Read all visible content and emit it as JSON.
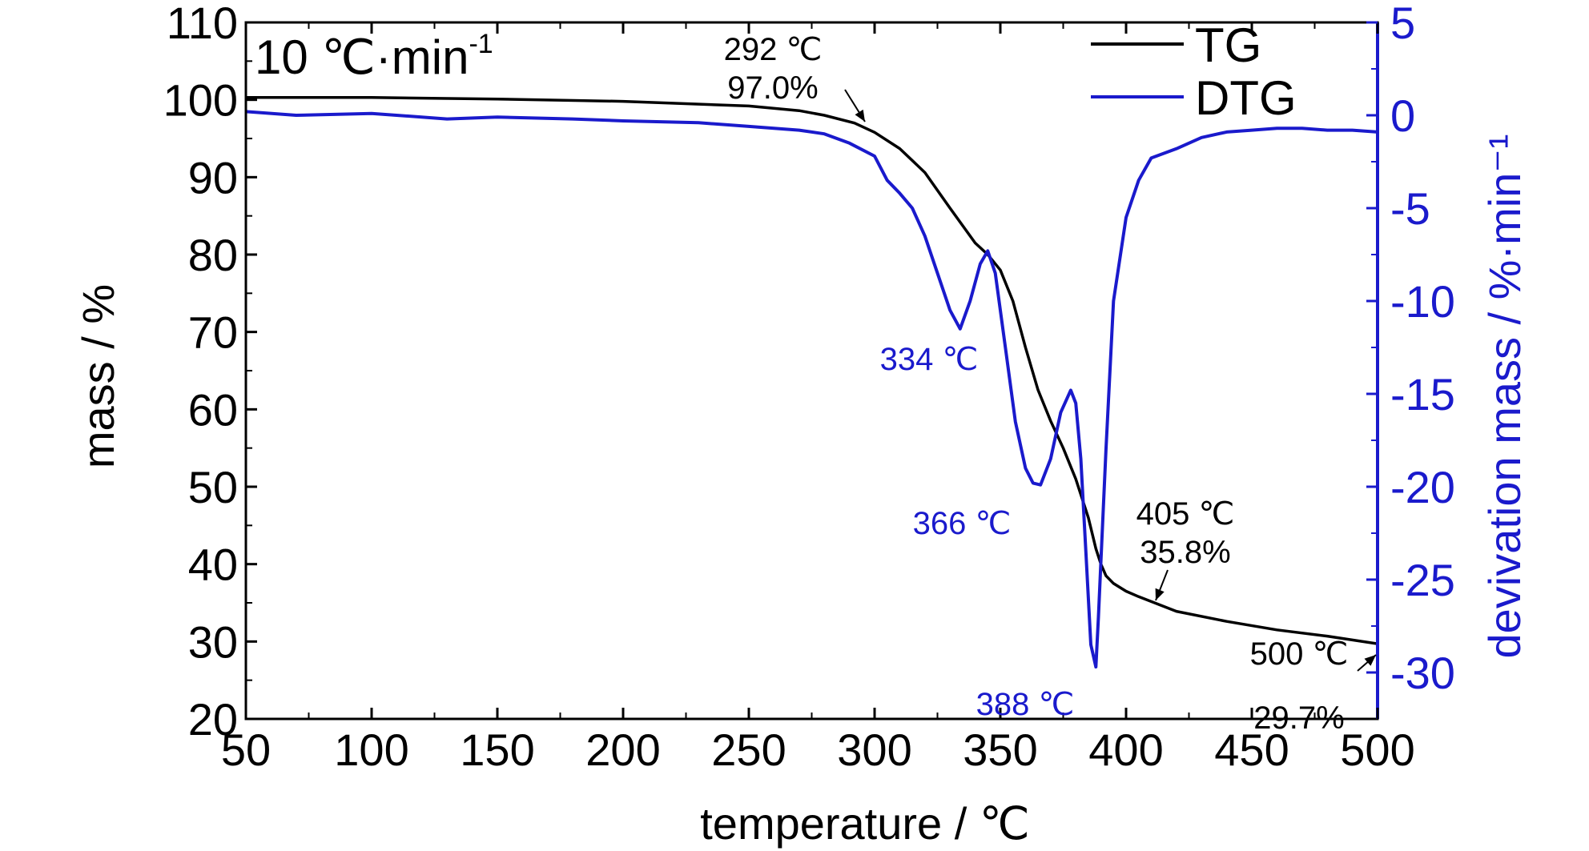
{
  "chart_data": {
    "type": "line",
    "xlabel": "temperature / ℃",
    "ylabel_left": "mass / %",
    "ylabel_right": "devivation mass / %·min⁻¹",
    "condition_label": {
      "main": "10 ℃·min",
      "sup": "-1"
    },
    "xlim": [
      50,
      500
    ],
    "ylim_left": [
      20,
      110
    ],
    "ylim_right": [
      -32.5,
      5
    ],
    "x_ticks": [
      50,
      100,
      150,
      200,
      250,
      300,
      350,
      400,
      450,
      500
    ],
    "y_ticks_left": [
      20,
      30,
      40,
      50,
      60,
      70,
      80,
      90,
      100,
      110
    ],
    "y_ticks_right": [
      5,
      0,
      -5,
      -10,
      -15,
      -20,
      -25,
      -30
    ],
    "legend_position": "top-right",
    "colors": {
      "TG": "#000000",
      "DTG": "#1a1acc"
    },
    "series": [
      {
        "name": "TG",
        "axis": "left",
        "x": [
          50,
          100,
          150,
          200,
          250,
          270,
          280,
          292,
          300,
          310,
          320,
          330,
          340,
          345,
          350,
          355,
          360,
          365,
          370,
          375,
          380,
          385,
          388,
          390,
          392,
          395,
          400,
          405,
          420,
          440,
          460,
          480,
          500
        ],
        "y": [
          100.3,
          100.3,
          100.1,
          99.8,
          99.2,
          98.6,
          98.0,
          97.0,
          95.8,
          93.7,
          90.6,
          86.0,
          81.5,
          80.0,
          78.0,
          74.0,
          68.0,
          62.5,
          58.5,
          55.0,
          51.0,
          46.0,
          42.0,
          40.0,
          38.5,
          37.5,
          36.5,
          35.8,
          33.9,
          32.6,
          31.5,
          30.7,
          29.7
        ]
      },
      {
        "name": "DTG",
        "axis": "right",
        "x": [
          50,
          70,
          100,
          130,
          150,
          180,
          200,
          230,
          250,
          260,
          270,
          280,
          290,
          300,
          305,
          310,
          315,
          320,
          325,
          330,
          334,
          338,
          342,
          345,
          348,
          352,
          356,
          360,
          363,
          366,
          370,
          374,
          378,
          380,
          382,
          384,
          386,
          388,
          389,
          390,
          392,
          395,
          400,
          405,
          410,
          420,
          430,
          440,
          450,
          460,
          470,
          480,
          490,
          500
        ],
        "y": [
          0.2,
          0.0,
          0.1,
          -0.2,
          -0.1,
          -0.2,
          -0.3,
          -0.4,
          -0.6,
          -0.7,
          -0.8,
          -1.0,
          -1.5,
          -2.2,
          -3.5,
          -4.2,
          -5.0,
          -6.5,
          -8.5,
          -10.5,
          -11.5,
          -10.0,
          -8.0,
          -7.3,
          -8.5,
          -12.5,
          -16.5,
          -19.0,
          -19.8,
          -19.9,
          -18.5,
          -16.0,
          -14.8,
          -15.5,
          -18.5,
          -23.5,
          -28.5,
          -29.7,
          -27.0,
          -24.0,
          -18.0,
          -10.0,
          -5.5,
          -3.5,
          -2.3,
          -1.8,
          -1.2,
          -0.9,
          -0.8,
          -0.7,
          -0.7,
          -0.8,
          -0.8,
          -0.9
        ]
      }
    ],
    "annotations": [
      {
        "id": "tg_onset",
        "text": [
          "292 ℃",
          "97.0%"
        ],
        "color": "#000000",
        "x": 292,
        "y": 97.0,
        "axis": "left",
        "arrow": true
      },
      {
        "id": "tg_405",
        "text": [
          "405 ℃",
          "35.8%"
        ],
        "color": "#000000",
        "x": 405,
        "y": 35.8,
        "axis": "left",
        "arrow": true
      },
      {
        "id": "tg_500",
        "text": [
          "500 ℃",
          "29.7%"
        ],
        "color": "#000000",
        "x": 500,
        "y": 29.7,
        "axis": "left",
        "arrow": true
      },
      {
        "id": "dtg_334",
        "text": [
          "334 ℃"
        ],
        "color": "#1a1acc",
        "x": 334,
        "y": -11.5,
        "axis": "right",
        "arrow": false
      },
      {
        "id": "dtg_366",
        "text": [
          "366 ℃"
        ],
        "color": "#1a1acc",
        "x": 366,
        "y": -19.9,
        "axis": "right",
        "arrow": false
      },
      {
        "id": "dtg_388",
        "text": [
          "388 ℃"
        ],
        "color": "#1a1acc",
        "x": 388,
        "y": -29.7,
        "axis": "right",
        "arrow": false
      }
    ]
  }
}
